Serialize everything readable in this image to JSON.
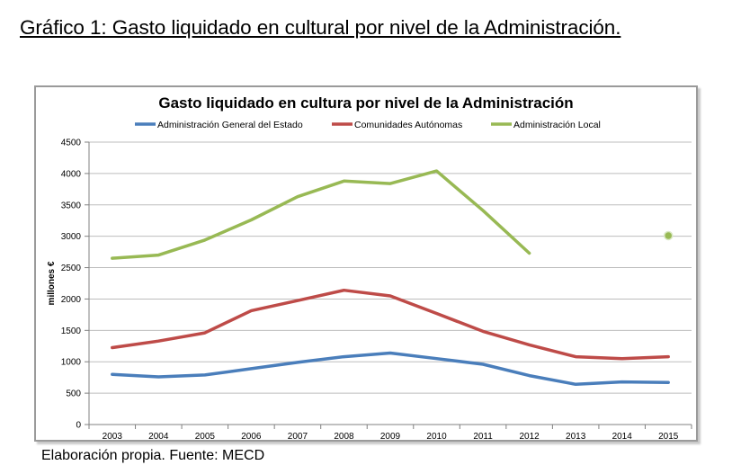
{
  "document": {
    "heading": "Gráfico 1: Gasto liquidado en cultural por nivel de la Administración.",
    "caption": "Elaboración propia. Fuente: MECD"
  },
  "colors": {
    "series": [
      "#4a7ebb",
      "#be4b48",
      "#98b954"
    ],
    "grid": "#bdbdbd",
    "axis": "#808080"
  },
  "chart_data": {
    "type": "line",
    "title": "Gasto liquidado en cultura por nivel de la Administración",
    "xlabel": "",
    "ylabel": "millones €",
    "ylim": [
      0,
      4500
    ],
    "yticks": [
      "0",
      "500",
      "1000",
      "1500",
      "2000",
      "2500",
      "3000",
      "3500",
      "4000",
      "4500"
    ],
    "grid": true,
    "legend_position": "top",
    "categories": [
      "2003",
      "2004",
      "2005",
      "2006",
      "2007",
      "2008",
      "2009",
      "2010",
      "2011",
      "2012",
      "2013",
      "2014",
      "2015"
    ],
    "series": [
      {
        "name": "Administración General del Estado",
        "values": [
          800,
          760,
          790,
          890,
          990,
          1080,
          1140,
          1050,
          960,
          780,
          640,
          680,
          670
        ]
      },
      {
        "name": "Comunidades Autónomas",
        "values": [
          1225,
          1330,
          1460,
          1815,
          1975,
          2140,
          2050,
          1770,
          1485,
          1270,
          1080,
          1050,
          1080
        ]
      },
      {
        "name": "Administración Local",
        "values": [
          2650,
          2700,
          2940,
          3260,
          3630,
          3880,
          3840,
          4040,
          3410,
          2730,
          null,
          null,
          3010
        ]
      }
    ]
  }
}
